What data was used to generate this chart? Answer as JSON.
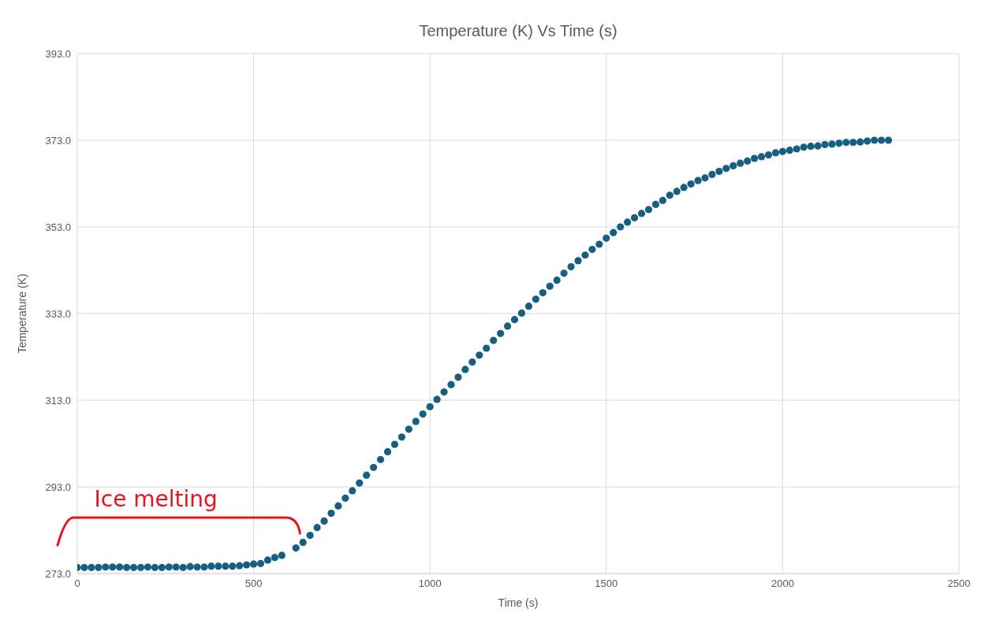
{
  "chart_data": {
    "type": "scatter",
    "title": "Temperature (K) Vs Time (s)",
    "xlabel": "Time (s)",
    "ylabel": "Temperature (K)",
    "x": [
      0,
      20,
      40,
      60,
      80,
      100,
      120,
      140,
      160,
      180,
      200,
      220,
      240,
      260,
      280,
      300,
      320,
      340,
      360,
      380,
      400,
      420,
      440,
      460,
      480,
      500,
      520,
      540,
      560,
      580,
      620,
      640,
      660,
      680,
      700,
      720,
      740,
      760,
      780,
      800,
      820,
      840,
      860,
      880,
      900,
      920,
      940,
      960,
      980,
      1000,
      1020,
      1040,
      1060,
      1080,
      1100,
      1120,
      1140,
      1160,
      1180,
      1200,
      1220,
      1240,
      1260,
      1280,
      1300,
      1320,
      1340,
      1360,
      1380,
      1400,
      1420,
      1440,
      1460,
      1480,
      1500,
      1520,
      1540,
      1560,
      1580,
      1600,
      1620,
      1640,
      1660,
      1680,
      1700,
      1720,
      1740,
      1760,
      1780,
      1800,
      1820,
      1840,
      1860,
      1880,
      1900,
      1920,
      1940,
      1960,
      1980,
      2000,
      2020,
      2040,
      2060,
      2080,
      2100,
      2120,
      2140,
      2160,
      2180,
      2200,
      2220,
      2240,
      2260,
      2280,
      2300
    ],
    "series": [
      {
        "color": "#155f82",
        "values": [
          274.4,
          274.4,
          274.4,
          274.4,
          274.5,
          274.5,
          274.5,
          274.4,
          274.4,
          274.4,
          274.5,
          274.4,
          274.4,
          274.5,
          274.5,
          274.4,
          274.6,
          274.5,
          274.5,
          274.7,
          274.7,
          274.7,
          274.7,
          274.8,
          275.0,
          275.2,
          275.3,
          276.1,
          276.7,
          277.2,
          278.9,
          280.2,
          281.8,
          283.6,
          285.1,
          286.9,
          288.6,
          290.4,
          292.1,
          293.9,
          295.7,
          297.5,
          299.3,
          301.1,
          302.8,
          304.5,
          306.3,
          308.1,
          309.8,
          311.5,
          313.2,
          314.9,
          316.6,
          318.3,
          320.1,
          321.8,
          323.4,
          325.0,
          326.8,
          328.4,
          330.1,
          331.6,
          333.1,
          334.7,
          336.3,
          337.8,
          339.3,
          340.7,
          342.3,
          343.8,
          345.2,
          346.5,
          347.8,
          349.0,
          350.4,
          351.7,
          353.0,
          354.1,
          355.1,
          356.1,
          357.0,
          358.2,
          359.1,
          360.3,
          361.2,
          362.1,
          362.9,
          363.7,
          364.3,
          365.1,
          365.8,
          366.5,
          367.1,
          367.7,
          368.2,
          368.8,
          369.2,
          369.6,
          370.1,
          370.4,
          370.7,
          371.0,
          371.4,
          371.6,
          371.7,
          372.0,
          372.1,
          372.3,
          372.5,
          372.5,
          372.6,
          372.8,
          373.0,
          373.0,
          373.0
        ]
      }
    ],
    "xlim": [
      0,
      2500
    ],
    "xticks": [
      0,
      500,
      1000,
      1500,
      2000,
      2500
    ],
    "ylim": [
      273,
      393
    ],
    "yticks": [
      {
        "value": 273,
        "label": "273.0"
      },
      {
        "value": 293,
        "label": "293.0"
      },
      {
        "value": 313,
        "label": "313.0"
      },
      {
        "value": 333,
        "label": "333.0"
      },
      {
        "value": 353,
        "label": "353.0"
      },
      {
        "value": 373,
        "label": "373.0"
      },
      {
        "value": 393,
        "label": "393.0"
      }
    ],
    "grid": true,
    "marker": "circle",
    "annotations": [
      {
        "text": "Ice melting",
        "x": 290,
        "y": 275
      }
    ]
  }
}
